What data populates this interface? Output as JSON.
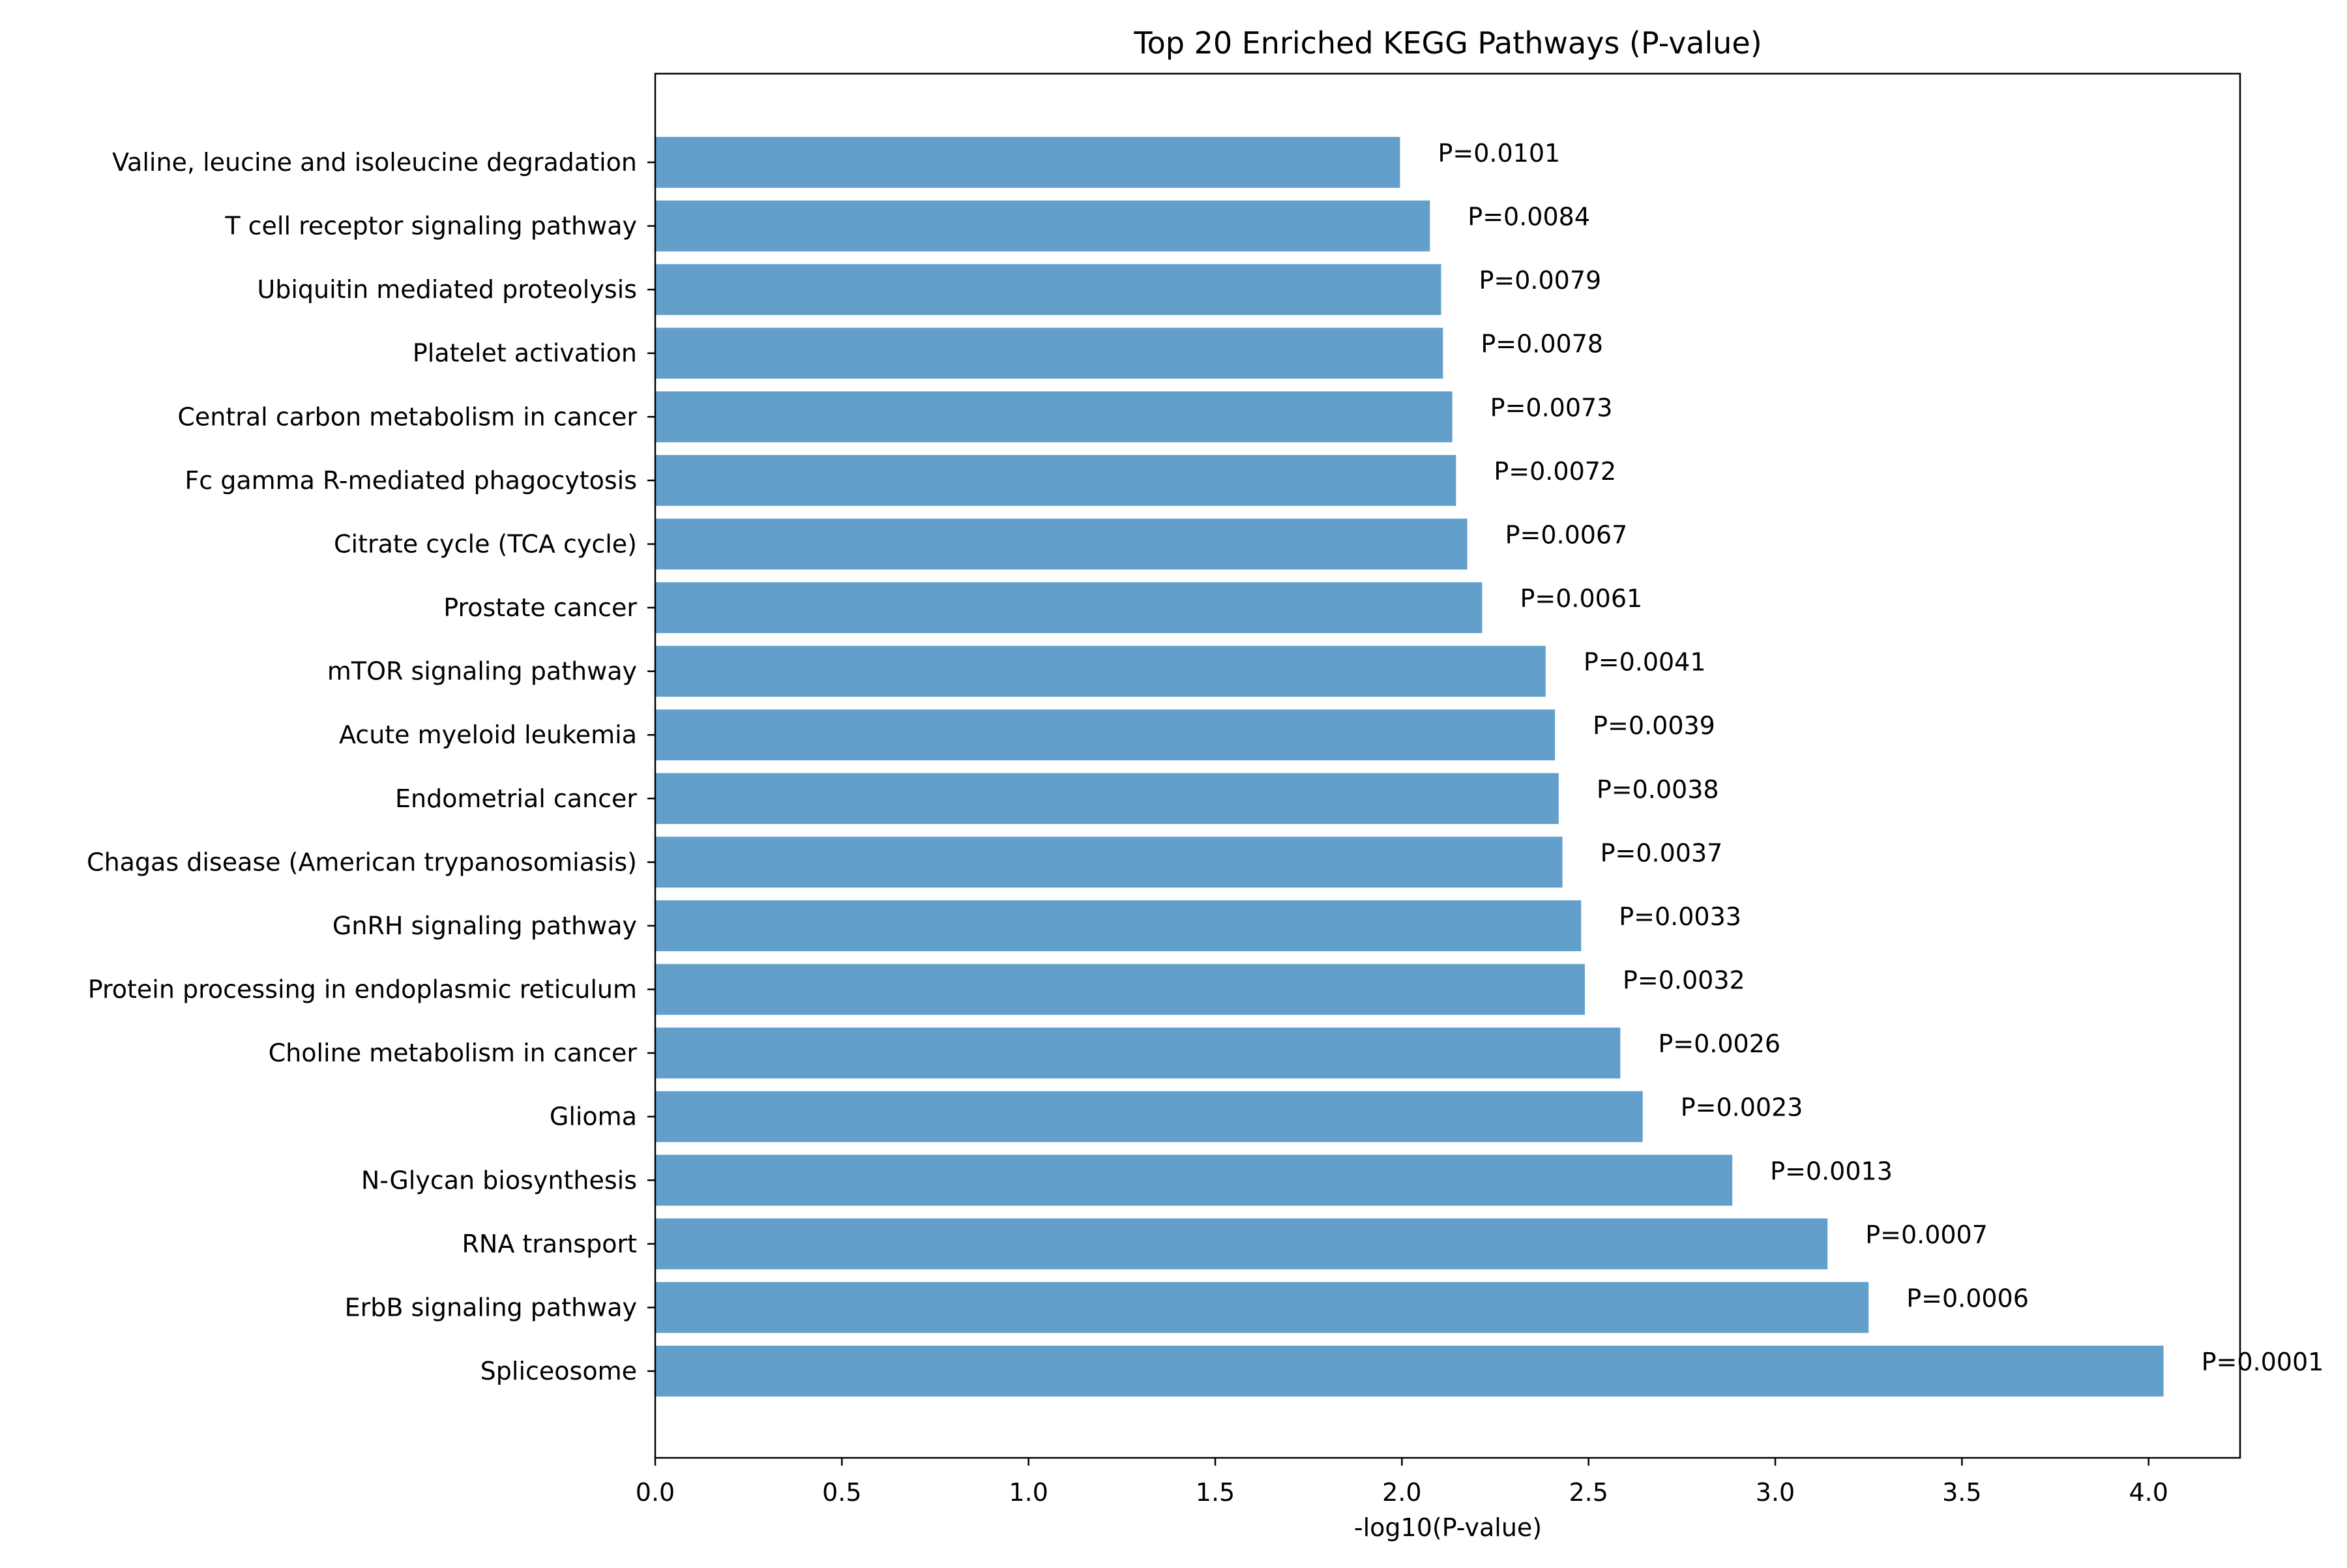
{
  "chart_data": {
    "type": "bar",
    "orientation": "horizontal",
    "title": "Top 20 Enriched KEGG Pathways (P-value)",
    "xlabel": "-log10(P-value)",
    "ylabel": "",
    "xlim": [
      0,
      4.245
    ],
    "xticks": [
      "0.0",
      "0.5",
      "1.0",
      "1.5",
      "2.0",
      "2.5",
      "3.0",
      "3.5",
      "4.0"
    ],
    "grid": false,
    "bar_color": "#62a0cb",
    "bars": [
      {
        "label": "Spliceosome",
        "value": 4.04,
        "annotation": "P=0.0001"
      },
      {
        "label": "ErbB signaling pathway",
        "value": 3.25,
        "annotation": "P=0.0006"
      },
      {
        "label": "RNA transport",
        "value": 3.14,
        "annotation": "P=0.0007"
      },
      {
        "label": "N-Glycan biosynthesis",
        "value": 2.885,
        "annotation": "P=0.0013"
      },
      {
        "label": "Glioma",
        "value": 2.645,
        "annotation": "P=0.0023"
      },
      {
        "label": "Choline metabolism in cancer",
        "value": 2.585,
        "annotation": "P=0.0026"
      },
      {
        "label": "Protein processing in endoplasmic reticulum",
        "value": 2.49,
        "annotation": "P=0.0032"
      },
      {
        "label": "GnRH signaling pathway",
        "value": 2.48,
        "annotation": "P=0.0033"
      },
      {
        "label": "Chagas disease (American trypanosomiasis)",
        "value": 2.43,
        "annotation": "P=0.0037"
      },
      {
        "label": "Endometrial cancer",
        "value": 2.42,
        "annotation": "P=0.0038"
      },
      {
        "label": "Acute myeloid leukemia",
        "value": 2.41,
        "annotation": "P=0.0039"
      },
      {
        "label": "mTOR signaling pathway",
        "value": 2.385,
        "annotation": "P=0.0041"
      },
      {
        "label": "Prostate cancer",
        "value": 2.215,
        "annotation": "P=0.0061"
      },
      {
        "label": "Citrate cycle (TCA cycle)",
        "value": 2.175,
        "annotation": "P=0.0067"
      },
      {
        "label": "Fc gamma R-mediated phagocytosis",
        "value": 2.145,
        "annotation": "P=0.0072"
      },
      {
        "label": "Central carbon metabolism in cancer",
        "value": 2.135,
        "annotation": "P=0.0073"
      },
      {
        "label": "Platelet activation",
        "value": 2.11,
        "annotation": "P=0.0078"
      },
      {
        "label": "Ubiquitin mediated proteolysis",
        "value": 2.105,
        "annotation": "P=0.0079"
      },
      {
        "label": "T cell receptor signaling pathway",
        "value": 2.075,
        "annotation": "P=0.0084"
      },
      {
        "label": "Valine, leucine and isoleucine degradation",
        "value": 1.995,
        "annotation": "P=0.0101"
      }
    ]
  }
}
